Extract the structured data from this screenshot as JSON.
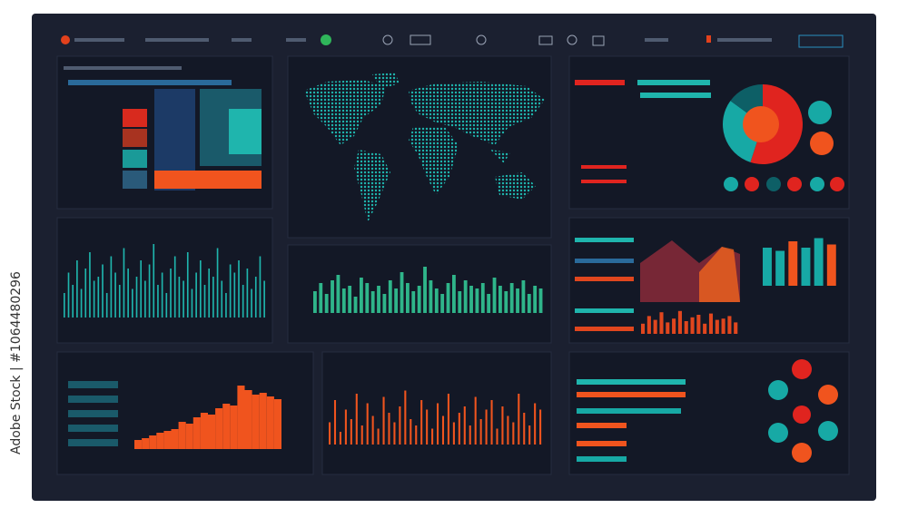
{
  "watermark": "Adobe Stock | #1064480296",
  "panels": {
    "wave": {
      "color": "#1fb5ad",
      "values": [
        30,
        55,
        40,
        70,
        35,
        60,
        80,
        45,
        50,
        65,
        30,
        75,
        55,
        40,
        85,
        60,
        35,
        50,
        70,
        45,
        65,
        90,
        40,
        55,
        30,
        60,
        75,
        50,
        45,
        80,
        35,
        55,
        70,
        40,
        60,
        50,
        85,
        45,
        30,
        65,
        55,
        70,
        40,
        60,
        35,
        50,
        75,
        45
      ]
    },
    "green": {
      "color": "#2fb58a",
      "values": [
        40,
        55,
        35,
        60,
        70,
        45,
        50,
        30,
        65,
        55,
        40,
        50,
        35,
        60,
        45,
        75,
        55,
        40,
        50,
        85,
        60,
        45,
        35,
        55,
        70,
        40,
        60,
        50,
        45,
        55,
        35,
        65,
        50,
        40,
        55,
        45,
        60,
        35,
        50,
        45
      ]
    },
    "orange": {
      "color": "#f0541e",
      "values": [
        35,
        70,
        20,
        55,
        40,
        80,
        30,
        65,
        45,
        25,
        75,
        50,
        35,
        60,
        85,
        40,
        30,
        70,
        55,
        25,
        65,
        45,
        80,
        35,
        50,
        60,
        30,
        75,
        40,
        55,
        70,
        25,
        60,
        45,
        35,
        80,
        50,
        30,
        65,
        55
      ]
    },
    "area": {
      "color": "#f0541e",
      "values": [
        10,
        12,
        15,
        18,
        20,
        22,
        30,
        28,
        35,
        40,
        38,
        45,
        50,
        48,
        70,
        65,
        60,
        62,
        58,
        55
      ]
    },
    "pie": {
      "colors": [
        "#e0241f",
        "#17a9a5",
        "#0d5f66"
      ],
      "values": [
        55,
        30,
        15
      ]
    },
    "columns": {
      "colors": [
        "#17a9a5",
        "#17a9a5",
        "#f0541e",
        "#17a9a5",
        "#17a9a5",
        "#f0541e"
      ],
      "values": [
        60,
        55,
        70,
        60,
        75,
        65
      ]
    },
    "small": {
      "color": "#e0461e",
      "values": [
        40,
        70,
        55,
        85,
        45,
        60,
        90,
        50,
        65,
        75,
        40,
        80,
        55,
        60,
        70,
        45
      ]
    }
  }
}
